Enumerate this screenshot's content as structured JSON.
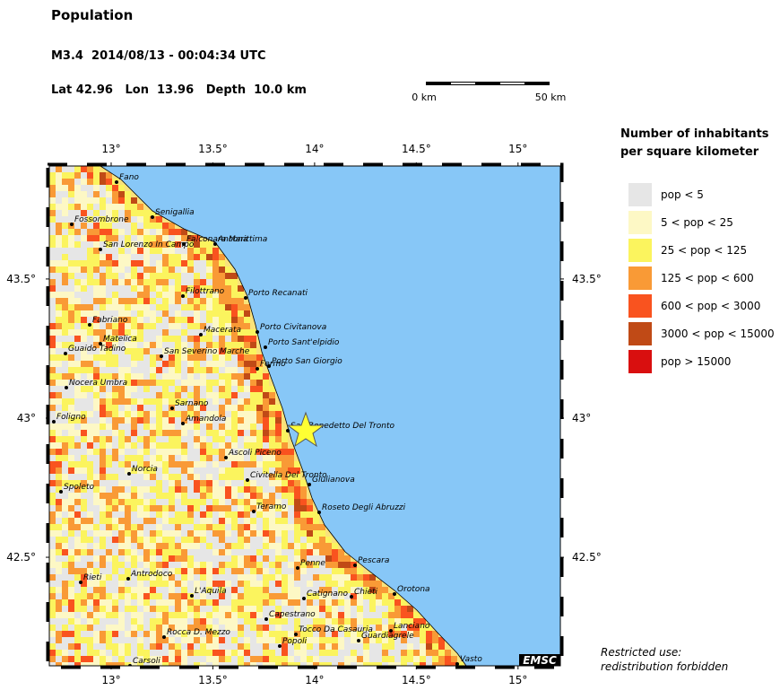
{
  "header": {
    "title": "Population",
    "event": "M3.4  2014/08/13 - 00:04:34 UTC",
    "location": "Lat 42.96   Lon  13.96   Depth  10.0 km"
  },
  "scale_bar": {
    "start": "0 km",
    "end": "50 km"
  },
  "map": {
    "xlim": [
      12.696,
      15.208
    ],
    "ylim": [
      42.11,
      43.906
    ],
    "xticks": [
      {
        "value": 13,
        "label": "13°"
      },
      {
        "value": 13.5,
        "label": "13.5°"
      },
      {
        "value": 14,
        "label": "14°"
      },
      {
        "value": 14.5,
        "label": "14.5°"
      },
      {
        "value": 15,
        "label": "15°"
      }
    ],
    "yticks": [
      {
        "value": 42.5,
        "label": "42.5°"
      },
      {
        "value": 43,
        "label": "43°"
      },
      {
        "value": 43.5,
        "label": "43.5°"
      }
    ],
    "cities": [
      "Fano",
      "Senigallia",
      "Fossombrone",
      "Falconara Marittima",
      "Ancona",
      "San Lorenzo In Campo",
      "Filottrano",
      "Porto Recanati",
      "Fabriano",
      "Porto Civitanova",
      "Macerata",
      "Matelica",
      "Porto Sant'elpidio",
      "Guaido Tadino",
      "San Severino Marche",
      "Fermo",
      "Porto San Giorgio",
      "Nocera Umbra",
      "Sarnano",
      "Foligno",
      "Amandola",
      "San Benedetto Del Tronto",
      "Ascoli Piceno",
      "Norcia",
      "Civitella Del Tronto",
      "Giulianova",
      "Spoleto",
      "Roseto Degli Abruzzi",
      "Teramo",
      "Penne",
      "Pescara",
      "Rieti",
      "Antrodoco",
      "Orotona",
      "L'Aquila",
      "Catignano",
      "Chieti",
      "Capestrano",
      "Tocco Da Casauria",
      "Lanciano",
      "Guardiagrele",
      "Rocca D. Mezzo",
      "Popoli",
      "Vasto",
      "Carsoli"
    ],
    "badge": "EMSC"
  },
  "legend": {
    "title": [
      "Number of inhabitants",
      "per square kilometer"
    ],
    "entries": [
      {
        "label": "pop < 5",
        "color": "#e6e6e6"
      },
      {
        "label": "5 < pop < 25",
        "color": "#fdf8c5"
      },
      {
        "label": "25 < pop < 125",
        "color": "#fbf45e"
      },
      {
        "label": "125 < pop < 600",
        "color": "#f99a36"
      },
      {
        "label": "600 < pop < 3000",
        "color": "#f9531f"
      },
      {
        "label": "3000 < pop < 15000",
        "color": "#c04a16"
      },
      {
        "label": "pop > 15000",
        "color": "#d90f0f"
      }
    ]
  },
  "notice": [
    "Restricted use:",
    "redistribution forbidden"
  ]
}
